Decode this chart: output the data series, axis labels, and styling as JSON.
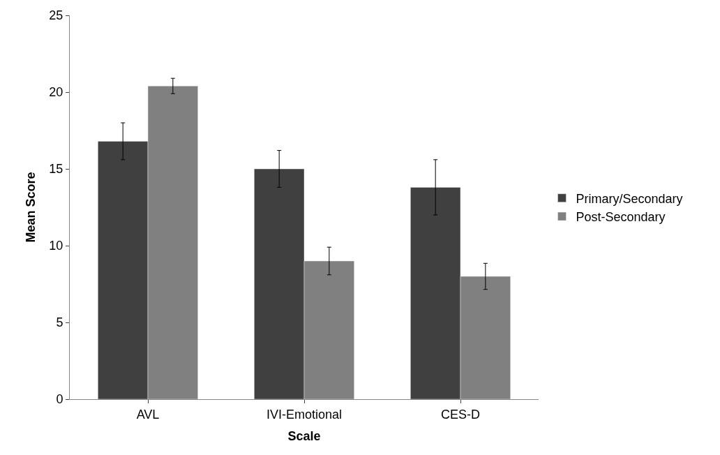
{
  "chart_data": {
    "type": "bar",
    "xlabel": "Scale",
    "ylabel": "Mean Score",
    "categories": [
      "AVL",
      "IVI-Emotional",
      "CES-D"
    ],
    "series": [
      {
        "name": "Primary/Secondary",
        "color": "#404040",
        "values": [
          16.8,
          15.0,
          13.8
        ],
        "errors": [
          1.2,
          1.2,
          1.8
        ]
      },
      {
        "name": "Post-Secondary",
        "color": "#808080",
        "values": [
          20.4,
          9.0,
          8.0
        ],
        "errors": [
          0.5,
          0.9,
          0.85
        ]
      }
    ],
    "ylim": [
      0,
      25
    ],
    "yticks": [
      0,
      5,
      10,
      15,
      20,
      25
    ],
    "legend": "right"
  }
}
